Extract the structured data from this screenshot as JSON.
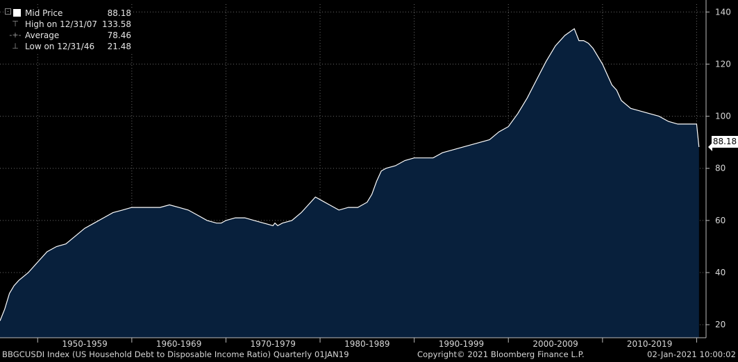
{
  "legend": {
    "mid_label": "Mid Price",
    "mid_value": "88.18",
    "high_label": "High on 12/31/07",
    "high_value": "133.58",
    "avg_label": "Average",
    "avg_value": "78.46",
    "low_label": "Low on 12/31/46",
    "low_value": "21.48"
  },
  "last_value_label": "88.18",
  "footer": {
    "left": "BBGCUSDI Index (US Household Debt to Disposable Income Ratio)  Quarterly 01JAN19",
    "center": "Copyright© 2021 Bloomberg Finance L.P.",
    "right": "02-Jan-2021 10:00:02"
  },
  "colors": {
    "background": "#000000",
    "area_fill": "#08203c",
    "line": "#ffffff",
    "grid": "#6a6a6a"
  },
  "chart_data": {
    "type": "area",
    "title": "",
    "xlabel": "",
    "ylabel": "",
    "ylim": [
      15,
      143
    ],
    "xlim": [
      1946.0,
      2021.0
    ],
    "y_ticks": [
      20,
      40,
      60,
      80,
      100,
      120,
      140
    ],
    "x_tick_labels": [
      "1950-1959",
      "1960-1969",
      "1970-1979",
      "1980-1989",
      "1990-1999",
      "2000-2009",
      "2010-2019"
    ],
    "grid": true,
    "y_axis_side": "right",
    "series": [
      {
        "name": "Mid Price",
        "x": [
          1946.0,
          1946.5,
          1947.0,
          1947.5,
          1948.0,
          1949.0,
          1950.0,
          1951.0,
          1952.0,
          1953.0,
          1954.0,
          1955.0,
          1956.0,
          1957.0,
          1958.0,
          1959.0,
          1960.0,
          1961.0,
          1962.0,
          1963.0,
          1964.0,
          1965.0,
          1966.0,
          1967.0,
          1968.0,
          1969.0,
          1969.5,
          1970.0,
          1971.0,
          1972.0,
          1973.0,
          1974.0,
          1975.0,
          1975.2,
          1975.5,
          1976.0,
          1977.0,
          1978.0,
          1979.0,
          1979.5,
          1980.0,
          1981.0,
          1981.5,
          1982.0,
          1983.0,
          1984.0,
          1985.0,
          1985.5,
          1986.0,
          1986.5,
          1987.0,
          1988.0,
          1989.0,
          1990.0,
          1991.0,
          1992.0,
          1993.0,
          1994.0,
          1995.0,
          1996.0,
          1997.0,
          1998.0,
          1999.0,
          2000.0,
          2001.0,
          2002.0,
          2003.0,
          2004.0,
          2005.0,
          2006.0,
          2007.0,
          2007.5,
          2008.0,
          2008.5,
          2009.0,
          2010.0,
          2011.0,
          2011.5,
          2012.0,
          2013.0,
          2014.0,
          2015.0,
          2016.0,
          2017.0,
          2018.0,
          2019.0,
          2019.5,
          2020.0,
          2020.25
        ],
        "values": [
          21.48,
          26,
          32,
          35,
          37,
          40,
          44,
          48,
          50,
          51,
          54,
          57,
          59,
          61,
          63,
          64,
          65,
          65,
          65,
          65,
          66,
          65,
          64,
          62,
          60,
          59,
          59,
          60,
          61,
          61,
          60,
          59,
          58,
          59,
          58,
          59,
          60,
          63,
          67,
          69,
          68,
          66,
          65,
          64,
          65,
          65,
          67,
          70,
          75,
          79,
          80,
          81,
          83,
          84,
          84,
          84,
          86,
          87,
          88,
          89,
          90,
          91,
          94,
          96,
          101,
          107,
          114,
          121,
          127,
          131,
          133.58,
          129,
          129,
          128,
          126,
          120,
          112,
          110,
          106,
          103,
          102,
          101,
          100,
          98,
          97,
          97,
          97,
          97,
          88.18
        ]
      }
    ]
  }
}
